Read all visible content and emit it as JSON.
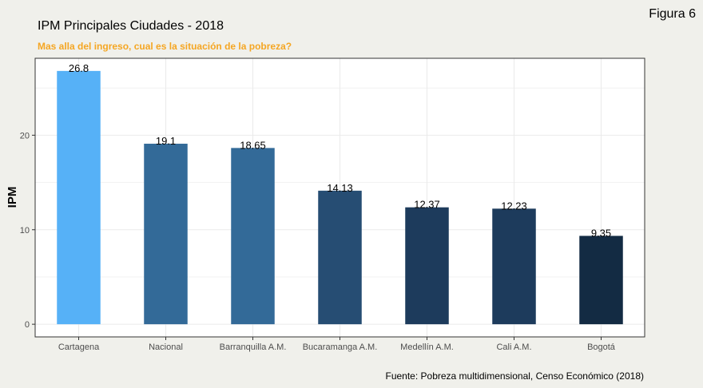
{
  "figure_label": "Figura 6",
  "caption": "Fuente: Pobreza multidimensional, Censo Económico (2018)",
  "chart_data": {
    "type": "bar",
    "title": "IPM Principales Ciudades - 2018",
    "subtitle": "Mas alla del ingreso, cual es la situación de la pobreza?",
    "xlabel": "",
    "ylabel": "IPM",
    "categories": [
      "Cartagena",
      "Nacional",
      "Barranquilla A.M.",
      "Bucaramanga A.M.",
      "Medellín A.M.",
      "Cali A.M.",
      "Bogotá"
    ],
    "values": [
      26.8,
      19.1,
      18.65,
      14.13,
      12.37,
      12.23,
      9.35
    ],
    "value_labels": [
      "26.8",
      "19.1",
      "18.65",
      "14.13",
      "12.37",
      "12.23",
      "9.35"
    ],
    "bar_colors": [
      "#56b1f7",
      "#336a98",
      "#336a98",
      "#264d73",
      "#1d3b5c",
      "#1d3b5c",
      "#132b43"
    ],
    "yticks": [
      0,
      10,
      20
    ],
    "ylim": [
      -1.34,
      28.14
    ],
    "grid": true,
    "colors": {
      "panel_background": "#ffffff",
      "page_background": "#f0f0eb",
      "subtitle": "#f5a623",
      "grid": "#ebebeb"
    }
  }
}
